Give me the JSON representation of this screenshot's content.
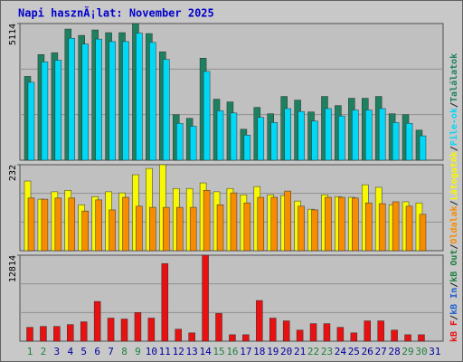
{
  "chart_data": [
    {
      "type": "bar",
      "title": "Napi hasznÃ¡lat: November 2025",
      "ylim": [
        0,
        5114
      ],
      "yticks": [
        5114
      ],
      "series": [
        {
          "name": "Találatok",
          "color": "#1d8060",
          "values": [
            3136,
            3955,
            4023,
            4909,
            4671,
            4875,
            4773,
            4773,
            5114,
            4739,
            4057,
            1705,
            1568,
            3818,
            2284,
            2182,
            1159,
            1977,
            1739,
            2386,
            2250,
            1807,
            2386,
            2045,
            2318,
            2318,
            2386,
            1739,
            1705,
            1125,
            null
          ]
        },
        {
          "name": "File-ok",
          "color": "#00d8f8",
          "values": [
            2916,
            3678,
            3741,
            4565,
            4344,
            4534,
            4439,
            4439,
            4756,
            4407,
            3773,
            1381,
            1270,
            3321,
            1850,
            1767,
            939,
            1601,
            1409,
            1933,
            1823,
            1464,
            1933,
            1656,
            1878,
            1878,
            1933,
            1409,
            1381,
            911,
            null
          ]
        }
      ]
    },
    {
      "type": "bar",
      "ylim": [
        0,
        232
      ],
      "yticks": [
        232
      ],
      "series": [
        {
          "name": "Látogatók",
          "color": "#f8f800",
          "values": [
            188,
            139,
            159,
            163,
            124,
            146,
            159,
            156,
            205,
            222,
            232,
            168,
            168,
            183,
            159,
            168,
            151,
            173,
            151,
            149,
            134,
            112,
            151,
            146,
            144,
            178,
            171,
            124,
            132,
            129,
            null
          ]
        },
        {
          "name": "Oldalak",
          "color": "#f88c00",
          "values": [
            142,
            139,
            142,
            142,
            107,
            137,
            110,
            144,
            120,
            117,
            117,
            117,
            117,
            163,
            124,
            156,
            129,
            144,
            144,
            161,
            120,
            110,
            144,
            144,
            142,
            129,
            127,
            132,
            120,
            98,
            null
          ]
        }
      ]
    },
    {
      "type": "bar",
      "ylim": [
        0,
        12814
      ],
      "yticks": [
        12814
      ],
      "categories": [
        "1",
        "2",
        "3",
        "4",
        "5",
        "6",
        "7",
        "8",
        "9",
        "10",
        "11",
        "12",
        "13",
        "14",
        "15",
        "16",
        "17",
        "18",
        "19",
        "20",
        "21",
        "22",
        "23",
        "24",
        "25",
        "26",
        "27",
        "28",
        "29",
        "30",
        "31"
      ],
      "category_colors": [
        "#208040",
        "#208040",
        "#0000a0",
        "#0000a0",
        "#0000a0",
        "#0000a0",
        "#0000a0",
        "#208040",
        "#208040",
        "#0000a0",
        "#0000a0",
        "#0000a0",
        "#0000a0",
        "#0000a0",
        "#208040",
        "#208040",
        "#0000a0",
        "#0000a0",
        "#0000a0",
        "#0000a0",
        "#0000a0",
        "#208040",
        "#208040",
        "#0000a0",
        "#0000a0",
        "#0000a0",
        "#0000a0",
        "#0000a0",
        "#208040",
        "#208040",
        "#0000a0"
      ],
      "series": [
        {
          "name": "kB F",
          "color": "#e81010",
          "values": [
            2067,
            2205,
            2205,
            2480,
            2894,
            5925,
            3445,
            3307,
            4272,
            3445,
            11575,
            1791,
            1240,
            12814,
            4134,
            965,
            965,
            6063,
            3445,
            3032,
            1654,
            2618,
            2618,
            2067,
            1240,
            3032,
            3032,
            1654,
            965,
            965,
            null
          ]
        }
      ]
    },
    {
      "legend_extra": [
        {
          "name": "kB In",
          "color": "#2060d0"
        },
        {
          "name": "kB Out",
          "color": "#208040"
        }
      ],
      "legend_separator": "/"
    }
  ]
}
